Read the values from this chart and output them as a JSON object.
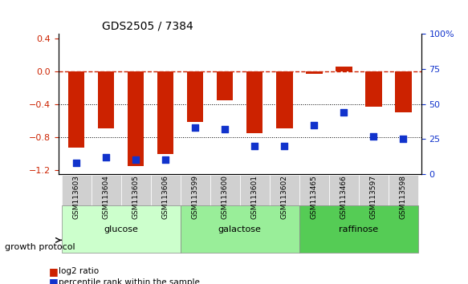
{
  "title": "GDS2505 / 7384",
  "samples": [
    "GSM113603",
    "GSM113604",
    "GSM113605",
    "GSM113606",
    "GSM113599",
    "GSM113600",
    "GSM113601",
    "GSM113602",
    "GSM113465",
    "GSM113466",
    "GSM113597",
    "GSM113598"
  ],
  "log2_ratio": [
    -0.93,
    -0.7,
    -1.15,
    -1.01,
    -0.62,
    -0.35,
    -0.75,
    -0.7,
    -0.03,
    0.06,
    -0.43,
    -0.5
  ],
  "percentile_rank": [
    8,
    12,
    10,
    10,
    33,
    32,
    20,
    20,
    35,
    44,
    27,
    25
  ],
  "groups": [
    {
      "label": "glucose",
      "start": 0,
      "end": 3,
      "color": "#ccffcc"
    },
    {
      "label": "galactose",
      "start": 4,
      "end": 7,
      "color": "#99ee99"
    },
    {
      "label": "raffinose",
      "start": 8,
      "end": 11,
      "color": "#55cc55"
    }
  ],
  "bar_color": "#cc2200",
  "dot_color": "#1133cc",
  "ref_line_color": "#cc2200",
  "ylim_left": [
    -1.25,
    0.45
  ],
  "ylim_right": [
    0,
    100
  ],
  "yticks_left": [
    -1.2,
    -0.8,
    -0.4,
    0.0,
    0.4
  ],
  "yticks_right": [
    0,
    25,
    50,
    75,
    100
  ],
  "growth_protocol_label": "growth protocol",
  "legend": [
    {
      "color": "#cc2200",
      "label": "log2 ratio"
    },
    {
      "color": "#1133cc",
      "label": "percentile rank within the sample"
    }
  ]
}
